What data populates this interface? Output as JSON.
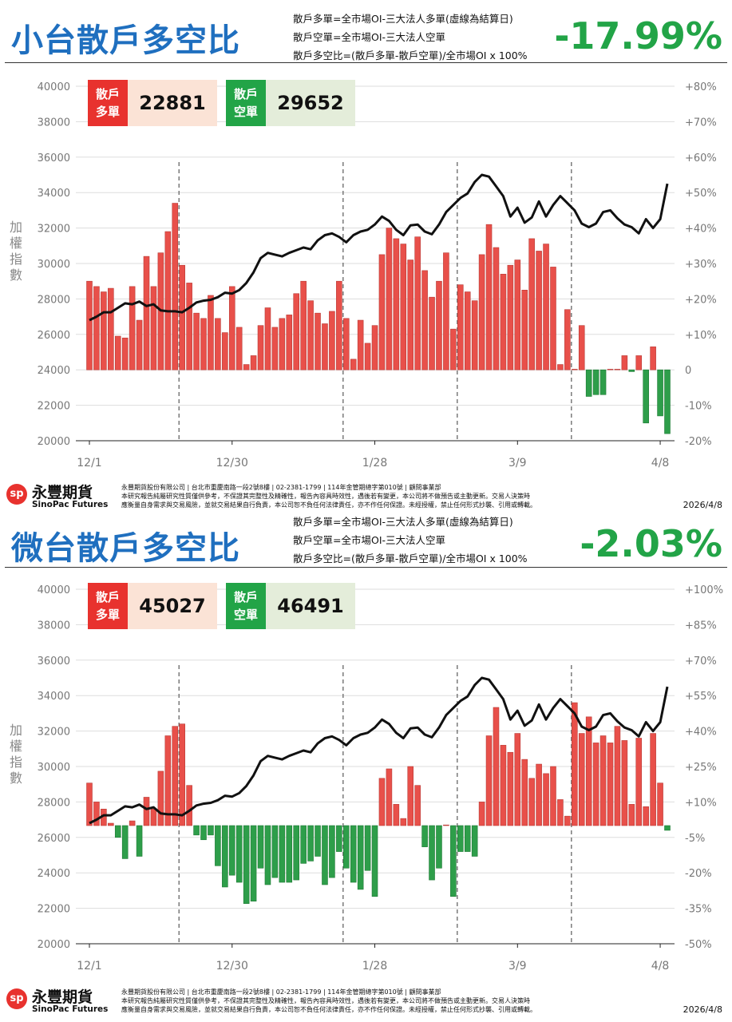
{
  "panels": [
    {
      "title": "小台散戶多空比",
      "notes": [
        "散戶多單=全市場OI-三大法人多單(虛線為結算日)",
        "散戶空單=全市場OI-三大法人空單",
        "散戶多空比=(散戶多單-散戶空單)/全市場OI x 100%"
      ],
      "ratio": "-17.99%",
      "long_label": "散戶多單",
      "long_value": "22881",
      "short_label": "散戶空單",
      "short_value": "29652"
    },
    {
      "title": "微台散戶多空比",
      "notes": [
        "散戶多單=全市場OI-三大法人多單(虛線為結算日)",
        "散戶空單=全市場OI-三大法人空單",
        "散戶多空比=(散戶多單-散戶空單)/全市場OI x 100%"
      ],
      "ratio": "-2.03%",
      "long_label": "散戶多單",
      "long_value": "45027",
      "short_label": "散戶空單",
      "short_value": "46491"
    }
  ],
  "footer": {
    "logo_cn": "永豐期貨",
    "logo_en": "SinoPac Futures",
    "company_line": "永豐期貨股份有限公司 | 台北市重慶南路一段2號8樓 | 02-2381-1799 | 114年金管期總字第010號 | 顧問事業部",
    "disclaimer_1": "本研究報告純屬研究性質僅供參考，不保證其完整性及精確性，報告內容具時效性，遇後若有變更，本公司將不做預告或主動更新。交易人決策時",
    "disclaimer_2": "應衡量自身需求與交易風險，並就交易結果自行負責，本公司恕不負任何法律責任，亦不作任何保證。未經授權，禁止任何形式抄襲、引用或轉載。",
    "date": "2026/4/8"
  },
  "chart_data": [
    {
      "type": "bar+line",
      "ylabel": "加權指數",
      "x_tick_labels": [
        "12/1",
        "12/30",
        "1/28",
        "3/9",
        "4/8"
      ],
      "x_tick_index": [
        0,
        20,
        40,
        60,
        80
      ],
      "settlement_index": [
        12,
        35,
        51,
        67
      ],
      "left_axis": {
        "range": [
          20000,
          40000
        ],
        "ticks": [
          40000,
          38000,
          36000,
          34000,
          32000,
          30000,
          28000,
          26000,
          24000,
          22000,
          20000
        ]
      },
      "right_axis": {
        "range": [
          -20,
          80
        ],
        "ticks": [
          "+80%",
          "+70%",
          "+60%",
          "+50%",
          "+40%",
          "+30%",
          "+20%",
          "+10%",
          "0",
          "-10%",
          "-20%"
        ],
        "tick_values": [
          80,
          70,
          60,
          50,
          40,
          30,
          20,
          10,
          0,
          -10,
          -20
        ]
      },
      "colors": {
        "positive": "#e8504a",
        "negative": "#2e9e4a",
        "line": "#111111"
      },
      "bars_ratio_pct": [
        25,
        23.5,
        22,
        23,
        9.5,
        9,
        23.5,
        14,
        32,
        23.5,
        33,
        39,
        47,
        29.5,
        24.5,
        16,
        14.5,
        21,
        14.5,
        10.5,
        23.5,
        12,
        1.5,
        4,
        12.5,
        17.5,
        12,
        14.5,
        15.5,
        21.5,
        25,
        19.5,
        16,
        13,
        16.5,
        25,
        14.5,
        3,
        14,
        7.5,
        12.5,
        32.5,
        40,
        37,
        35.5,
        31,
        37.5,
        28,
        20.5,
        25,
        33,
        11.5,
        24,
        22,
        19.5,
        32.5,
        41,
        34.5,
        27,
        29.5,
        31,
        22.5,
        37,
        33.5,
        35.5,
        29,
        1.5,
        17,
        0,
        12.5,
        -7.5,
        -7,
        -7,
        0,
        0,
        4,
        -0.5,
        4,
        -15,
        6.5,
        -13,
        -18
      ],
      "index_line": [
        26800,
        27000,
        27250,
        27250,
        27500,
        27750,
        27700,
        27850,
        27600,
        27700,
        27350,
        27300,
        27300,
        27250,
        27500,
        27800,
        27900,
        27950,
        28100,
        28350,
        28300,
        28500,
        28900,
        29500,
        30300,
        30600,
        30500,
        30400,
        30600,
        30750,
        30900,
        30800,
        31300,
        31600,
        31700,
        31500,
        31200,
        31600,
        31800,
        31900,
        32200,
        32650,
        32400,
        31900,
        31600,
        32150,
        32200,
        31800,
        31650,
        32200,
        32900,
        33300,
        33700,
        33950,
        34600,
        35000,
        34900,
        34350,
        33800,
        32650,
        33150,
        32300,
        32600,
        33500,
        32650,
        33300,
        33800,
        33400,
        33000,
        32250,
        32050,
        32250,
        32900,
        33000,
        32550,
        32200,
        32050,
        31700,
        32500,
        32000,
        32500,
        34500
      ]
    },
    {
      "type": "bar+line",
      "ylabel": "加權指數",
      "x_tick_labels": [
        "12/1",
        "12/30",
        "1/28",
        "3/9",
        "4/8"
      ],
      "x_tick_index": [
        0,
        20,
        40,
        60,
        80
      ],
      "settlement_index": [
        12,
        35,
        51,
        67
      ],
      "left_axis": {
        "range": [
          20000,
          40000
        ],
        "ticks": [
          40000,
          38000,
          36000,
          34000,
          32000,
          30000,
          28000,
          26000,
          24000,
          22000,
          20000
        ]
      },
      "right_axis": {
        "range": [
          -50,
          100
        ],
        "ticks": [
          "+100%",
          "+85%",
          "+70%",
          "+55%",
          "+40%",
          "+25%",
          "+10%",
          "-5%",
          "-20%",
          "-35%",
          "-50%"
        ],
        "tick_values": [
          100,
          85,
          70,
          55,
          40,
          25,
          10,
          -5,
          -20,
          -35,
          -50
        ]
      },
      "colors": {
        "positive": "#e8504a",
        "negative": "#2e9e4a",
        "line": "#111111"
      },
      "bars_ratio_pct": [
        18,
        10,
        7,
        1,
        -5,
        -14,
        2,
        -13,
        12,
        7,
        23,
        38,
        42,
        43,
        17,
        -4,
        -6,
        -4,
        -17,
        -26,
        -21,
        -24,
        -33,
        -32,
        -18,
        -25,
        -22,
        -24,
        -24,
        -23,
        -16,
        -15,
        -13,
        -25,
        -22,
        -11,
        -18,
        -24,
        -27,
        -19,
        -30,
        20,
        24,
        9,
        3,
        25,
        17,
        -9,
        -23,
        -18,
        0,
        -30,
        -11,
        -11,
        -13,
        10,
        38,
        50,
        34,
        31,
        39,
        28,
        20,
        26,
        22,
        25,
        11,
        4,
        52,
        39,
        46,
        35,
        38,
        35,
        42,
        36,
        9,
        37,
        8,
        39,
        18,
        -2
      ],
      "index_line": [
        26800,
        27000,
        27250,
        27250,
        27500,
        27750,
        27700,
        27850,
        27600,
        27700,
        27350,
        27300,
        27300,
        27250,
        27500,
        27800,
        27900,
        27950,
        28100,
        28350,
        28300,
        28500,
        28900,
        29500,
        30300,
        30600,
        30500,
        30400,
        30600,
        30750,
        30900,
        30800,
        31300,
        31600,
        31700,
        31500,
        31200,
        31600,
        31800,
        31900,
        32200,
        32650,
        32400,
        31900,
        31600,
        32150,
        32200,
        31800,
        31650,
        32200,
        32900,
        33300,
        33700,
        33950,
        34600,
        35000,
        34900,
        34350,
        33800,
        32650,
        33150,
        32300,
        32600,
        33500,
        32650,
        33300,
        33800,
        33400,
        33000,
        32250,
        32050,
        32250,
        32900,
        33000,
        32550,
        32200,
        32050,
        31700,
        32500,
        32000,
        32500,
        34500
      ]
    }
  ]
}
